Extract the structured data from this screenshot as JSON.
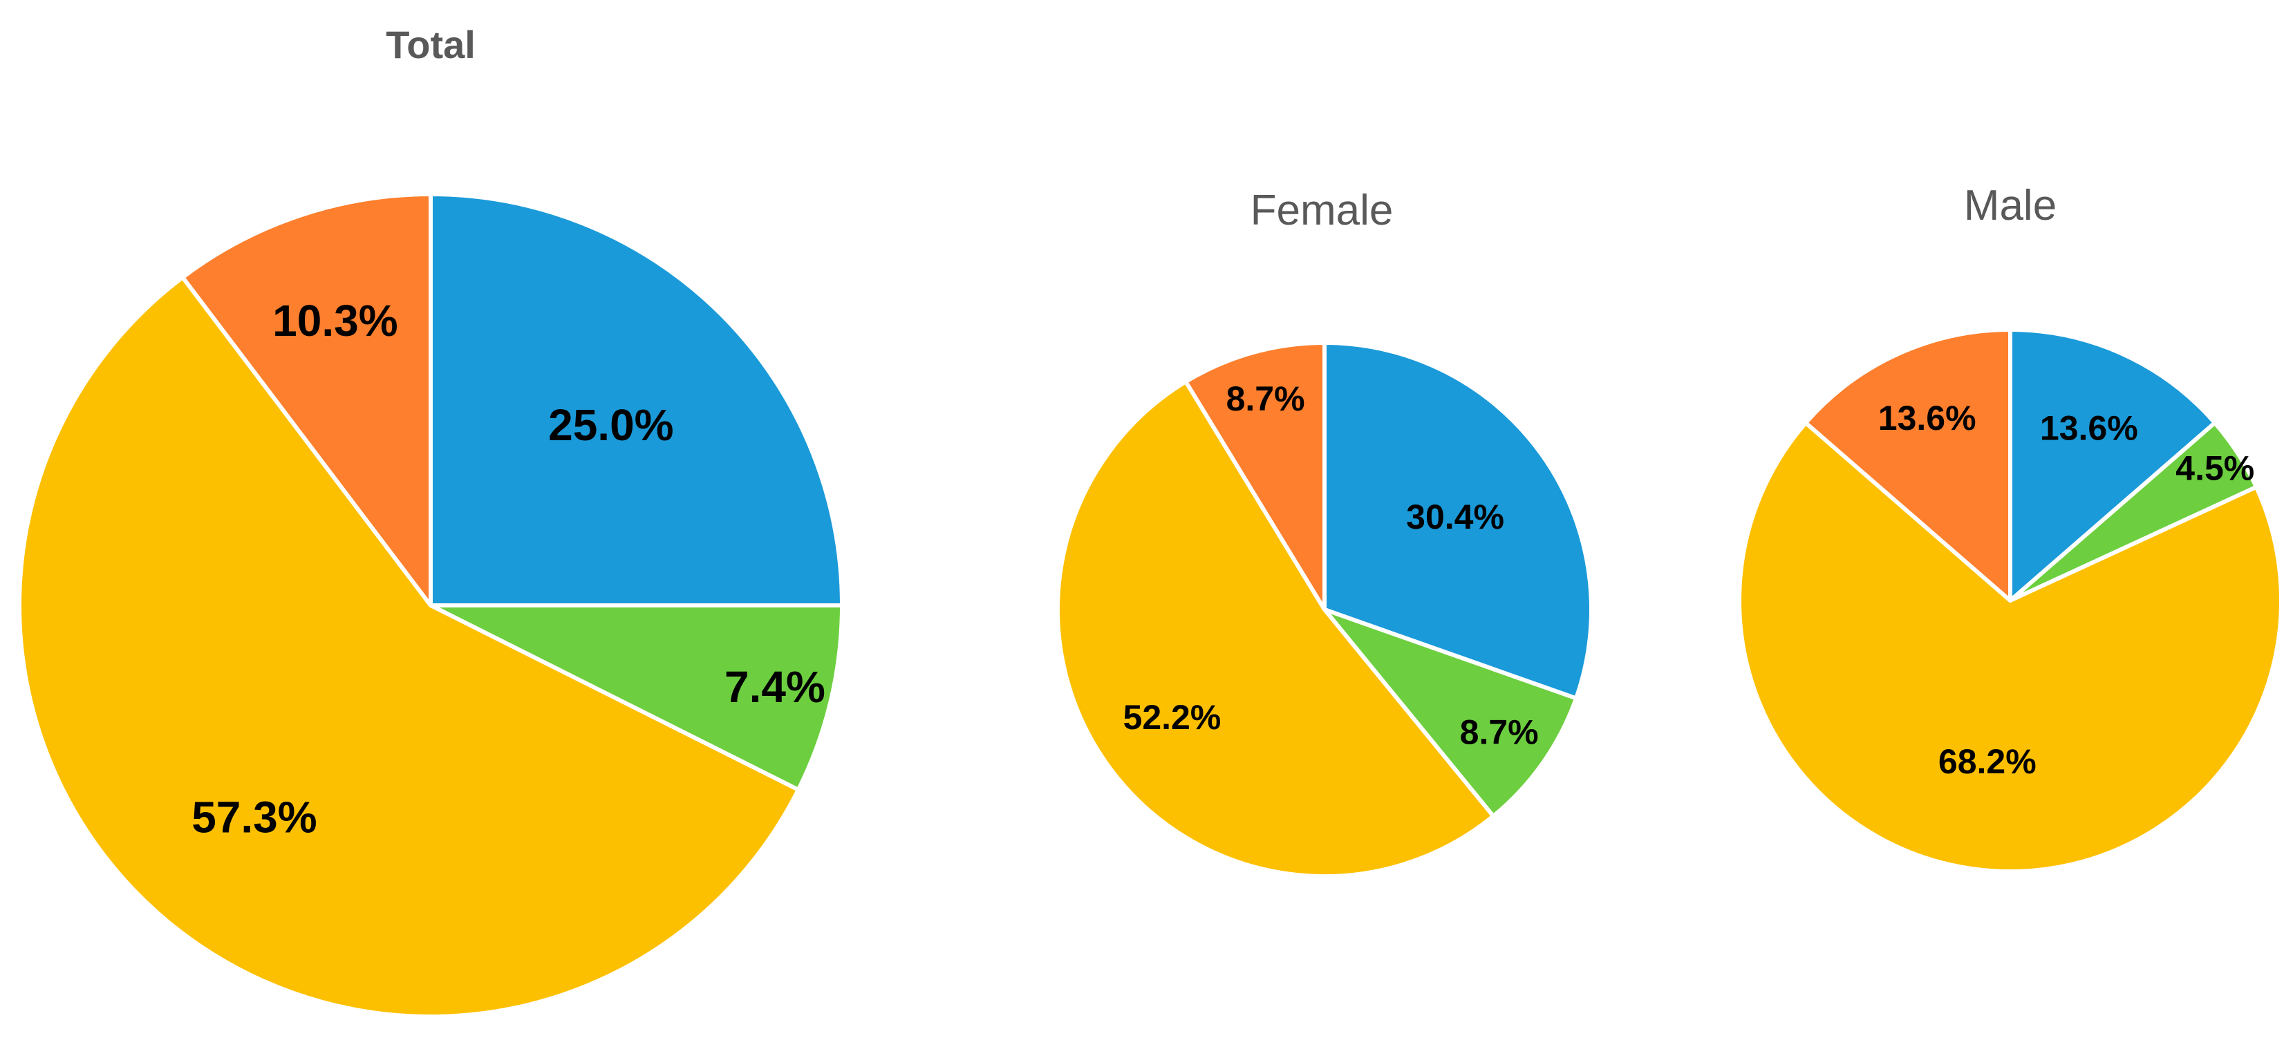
{
  "chart_data": [
    {
      "type": "pie",
      "title": "Total",
      "categories": [
        "",
        "",
        "",
        ""
      ],
      "values": [
        25.0,
        7.4,
        57.3,
        10.3
      ],
      "labels": [
        "25.0%",
        "7.4%",
        "57.3%",
        "10.3%"
      ],
      "colors": [
        "#1a9ad9",
        "#6dcf3f",
        "#fdc000",
        "#fe7f2d"
      ],
      "start": "12 o'clock, clockwise"
    },
    {
      "type": "pie",
      "title": "Female",
      "categories": [
        "",
        "",
        "",
        ""
      ],
      "values": [
        30.4,
        8.7,
        52.2,
        8.7
      ],
      "labels": [
        "30.4%",
        "8.7%",
        "52.2%",
        "8.7%"
      ],
      "colors": [
        "#1a9ad9",
        "#6dcf3f",
        "#fdc000",
        "#fe7f2d"
      ],
      "start": "12 o'clock, clockwise"
    },
    {
      "type": "pie",
      "title": "Male",
      "categories": [
        "",
        "",
        "",
        ""
      ],
      "values": [
        13.6,
        4.5,
        68.2,
        13.6
      ],
      "labels": [
        "13.6%",
        "4.5%",
        "68.2%",
        "13.6%"
      ],
      "colors": [
        "#1a9ad9",
        "#6dcf3f",
        "#fdc000",
        "#fe7f2d"
      ],
      "start": "12 o'clock, clockwise"
    }
  ]
}
